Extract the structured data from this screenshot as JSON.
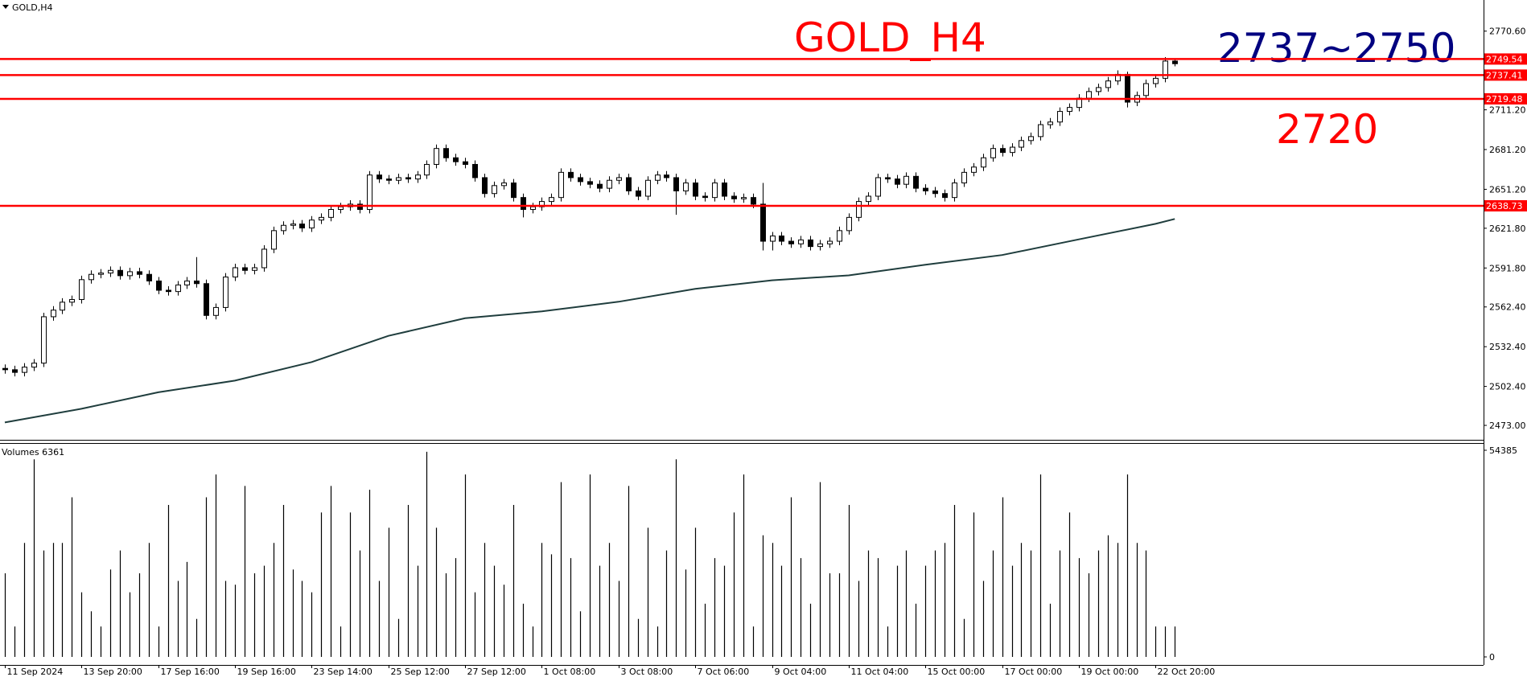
{
  "chart_data": [
    {
      "type": "candlestick",
      "title": "GOLD,H4",
      "annotations": [
        "GOLD_H4",
        "2737~2750",
        "2720"
      ],
      "xlim": [
        -0.5,
        154.2
      ],
      "ylim": [
        2462.1,
        2794.1
      ],
      "yticks": [
        {
          "value": 2770.6,
          "label": "2770.60"
        },
        {
          "value": 2711.2,
          "label": "2711.20"
        },
        {
          "value": 2681.2,
          "label": "2681.20"
        },
        {
          "value": 2651.2,
          "label": "2651.20"
        },
        {
          "value": 2621.8,
          "label": "2621.80"
        },
        {
          "value": 2591.8,
          "label": "2591.80"
        },
        {
          "value": 2562.4,
          "label": "2562.40"
        },
        {
          "value": 2532.4,
          "label": "2532.40"
        },
        {
          "value": 2502.4,
          "label": "2502.40"
        },
        {
          "value": 2473,
          "label": "2473.00"
        }
      ],
      "open": [
        2516,
        2515,
        2513,
        2517,
        2520,
        2555,
        2560,
        2566,
        2568,
        2583,
        2587,
        2588,
        2590,
        2586,
        2589,
        2587,
        2582,
        2575,
        2574,
        2579,
        2582,
        2580,
        2556,
        2562,
        2585,
        2592,
        2590,
        2592,
        2606,
        2620,
        2624,
        2625,
        2622,
        2628,
        2630,
        2636,
        2638,
        2640,
        2636,
        2662,
        2659,
        2658,
        2660,
        2659,
        2662,
        2670,
        2682,
        2675,
        2672,
        2670,
        2660,
        2648,
        2654,
        2656,
        2645,
        2636,
        2638,
        2642,
        2645,
        2664,
        2660,
        2657,
        2655,
        2652,
        2658,
        2660,
        2650,
        2646,
        2658,
        2662,
        2660,
        2650,
        2656,
        2646,
        2645,
        2656,
        2646,
        2644,
        2645,
        2640,
        2612,
        2616,
        2612,
        2610,
        2613,
        2608,
        2610,
        2612,
        2620,
        2630,
        2642,
        2646,
        2660,
        2659,
        2655,
        2661,
        2652,
        2650,
        2648,
        2645,
        2656,
        2664,
        2668,
        2675,
        2682,
        2679,
        2683,
        2688,
        2691,
        2700,
        2702,
        2710,
        2713,
        2720,
        2725,
        2728,
        2733,
        2738,
        2717,
        2722,
        2731,
        2735,
        2748
      ],
      "high": [
        2519,
        2518,
        2520,
        2523,
        2558,
        2563,
        2569,
        2571,
        2586,
        2590,
        2591,
        2593,
        2593,
        2592,
        2592,
        2590,
        2585,
        2578,
        2582,
        2585,
        2600,
        2583,
        2565,
        2588,
        2595,
        2595,
        2595,
        2609,
        2623,
        2627,
        2628,
        2628,
        2631,
        2633,
        2639,
        2641,
        2643,
        2643,
        2665,
        2665,
        2662,
        2663,
        2663,
        2665,
        2673,
        2685,
        2685,
        2678,
        2675,
        2673,
        2663,
        2657,
        2659,
        2659,
        2648,
        2641,
        2645,
        2648,
        2667,
        2667,
        2663,
        2660,
        2658,
        2661,
        2663,
        2663,
        2653,
        2661,
        2665,
        2665,
        2663,
        2659,
        2659,
        2649,
        2659,
        2659,
        2649,
        2648,
        2648,
        2656,
        2619,
        2619,
        2615,
        2616,
        2616,
        2613,
        2615,
        2623,
        2633,
        2645,
        2649,
        2663,
        2663,
        2662,
        2664,
        2664,
        2655,
        2653,
        2651,
        2659,
        2667,
        2671,
        2678,
        2685,
        2685,
        2686,
        2691,
        2694,
        2703,
        2705,
        2713,
        2716,
        2723,
        2728,
        2731,
        2736,
        2741,
        2740,
        2725,
        2734,
        2738,
        2751,
        2750
      ],
      "low": [
        2512,
        2510,
        2510,
        2514,
        2517,
        2552,
        2557,
        2563,
        2565,
        2580,
        2584,
        2585,
        2583,
        2583,
        2584,
        2579,
        2572,
        2571,
        2571,
        2576,
        2577,
        2553,
        2553,
        2559,
        2582,
        2587,
        2587,
        2589,
        2603,
        2617,
        2621,
        2619,
        2619,
        2625,
        2627,
        2633,
        2635,
        2633,
        2633,
        2656,
        2655,
        2655,
        2656,
        2656,
        2659,
        2667,
        2672,
        2669,
        2667,
        2657,
        2645,
        2645,
        2651,
        2642,
        2630,
        2633,
        2635,
        2639,
        2642,
        2657,
        2654,
        2652,
        2649,
        2649,
        2655,
        2647,
        2643,
        2643,
        2655,
        2657,
        2632,
        2647,
        2643,
        2642,
        2642,
        2643,
        2641,
        2641,
        2637,
        2605,
        2605,
        2609,
        2607,
        2607,
        2605,
        2605,
        2607,
        2609,
        2617,
        2627,
        2639,
        2643,
        2656,
        2652,
        2652,
        2649,
        2647,
        2645,
        2642,
        2642,
        2653,
        2661,
        2665,
        2672,
        2676,
        2676,
        2680,
        2685,
        2688,
        2697,
        2699,
        2707,
        2710,
        2717,
        2722,
        2725,
        2730,
        2713,
        2714,
        2719,
        2728,
        2732,
        2744
      ],
      "close": [
        2515,
        2513,
        2517,
        2520,
        2555,
        2560,
        2566,
        2568,
        2583,
        2587,
        2588,
        2590,
        2586,
        2589,
        2587,
        2582,
        2575,
        2574,
        2579,
        2582,
        2580,
        2556,
        2562,
        2585,
        2592,
        2590,
        2592,
        2606,
        2620,
        2624,
        2625,
        2622,
        2628,
        2630,
        2636,
        2638,
        2640,
        2636,
        2662,
        2659,
        2658,
        2660,
        2659,
        2662,
        2670,
        2682,
        2675,
        2672,
        2670,
        2660,
        2648,
        2654,
        2656,
        2645,
        2636,
        2638,
        2642,
        2645,
        2664,
        2660,
        2657,
        2655,
        2652,
        2658,
        2660,
        2650,
        2646,
        2658,
        2662,
        2660,
        2650,
        2656,
        2646,
        2645,
        2656,
        2646,
        2644,
        2645,
        2640,
        2612,
        2616,
        2612,
        2610,
        2613,
        2608,
        2610,
        2612,
        2620,
        2630,
        2642,
        2646,
        2660,
        2659,
        2655,
        2661,
        2652,
        2650,
        2648,
        2645,
        2656,
        2664,
        2668,
        2675,
        2682,
        2679,
        2683,
        2688,
        2691,
        2700,
        2702,
        2710,
        2713,
        2720,
        2725,
        2728,
        2733,
        2738,
        2717,
        2722,
        2731,
        2735,
        2748,
        2746
      ],
      "levels": [
        2749.54,
        2737.41,
        2719.48,
        2638.73
      ],
      "level_color": "#ff0000",
      "ma": {
        "color": "#1f3d3d",
        "x": [
          0,
          8,
          16,
          24,
          32,
          40,
          48,
          56,
          64,
          72,
          80,
          88,
          96,
          104,
          112,
          120,
          122
        ],
        "values": [
          2475.2,
          2485.5,
          2498,
          2506.8,
          2520.8,
          2540.6,
          2553.9,
          2559,
          2566.3,
          2576,
          2582.5,
          2586.2,
          2594.3,
          2601.6,
          2613.4,
          2625.1,
          2628.8
        ]
      }
    },
    {
      "type": "bar",
      "title": "Volumes 6361",
      "color": "#000000",
      "xlim": [
        -0.5,
        154.2
      ],
      "ylim": [
        0,
        54385
      ],
      "yticks": [
        54385,
        0
      ],
      "xticks": [
        {
          "value": 0,
          "label": "11 Sep 2024"
        },
        {
          "value": 8,
          "label": "13 Sep 20:00"
        },
        {
          "value": 16,
          "label": "17 Sep 16:00"
        },
        {
          "value": 24,
          "label": "19 Sep 16:00"
        },
        {
          "value": 32,
          "label": "23 Sep 14:00"
        },
        {
          "value": 40,
          "label": "25 Sep 12:00"
        },
        {
          "value": 48,
          "label": "27 Sep 12:00"
        },
        {
          "value": 56,
          "label": "1 Oct 08:00"
        },
        {
          "value": 64,
          "label": "3 Oct 08:00"
        },
        {
          "value": 72,
          "label": "7 Oct 06:00"
        },
        {
          "value": 80,
          "label": "9 Oct 04:00"
        },
        {
          "value": 88,
          "label": "11 Oct 04:00"
        },
        {
          "value": 96,
          "label": "15 Oct 00:00"
        },
        {
          "value": 104,
          "label": "17 Oct 00:00"
        },
        {
          "value": 112,
          "label": "19 Oct 00:00"
        },
        {
          "value": 120,
          "label": "22 Oct 20:00"
        }
      ],
      "values": [
        22000,
        8000,
        30000,
        52000,
        28000,
        30000,
        30000,
        42000,
        17000,
        12000,
        8000,
        23000,
        28000,
        17000,
        22000,
        30000,
        8000,
        40000,
        20000,
        25000,
        10000,
        42000,
        48000,
        20000,
        19000,
        45000,
        22000,
        24000,
        30000,
        40000,
        23000,
        20000,
        17000,
        38000,
        45000,
        8000,
        38000,
        28000,
        44000,
        20000,
        34000,
        10000,
        40000,
        24000,
        54000,
        34000,
        22000,
        26000,
        48000,
        17000,
        30000,
        24000,
        19000,
        40000,
        14000,
        8000,
        30000,
        27000,
        46000,
        26000,
        12000,
        48000,
        24000,
        30000,
        20000,
        45000,
        10000,
        34000,
        8000,
        28000,
        52000,
        23000,
        34000,
        14000,
        26000,
        24000,
        38000,
        48000,
        8000,
        32000,
        30000,
        24000,
        42000,
        26000,
        14000,
        46000,
        22000,
        22000,
        40000,
        20000,
        28000,
        26000,
        8000,
        24000,
        28000,
        14000,
        24000,
        28000,
        30000,
        40000,
        10000,
        38000,
        20000,
        28000,
        42000,
        24000,
        30000,
        28000,
        48000,
        14000,
        28000,
        38000,
        26000,
        22000,
        28000,
        32000,
        30000,
        48000,
        30000,
        28000,
        8000,
        8000,
        8000
      ]
    }
  ]
}
